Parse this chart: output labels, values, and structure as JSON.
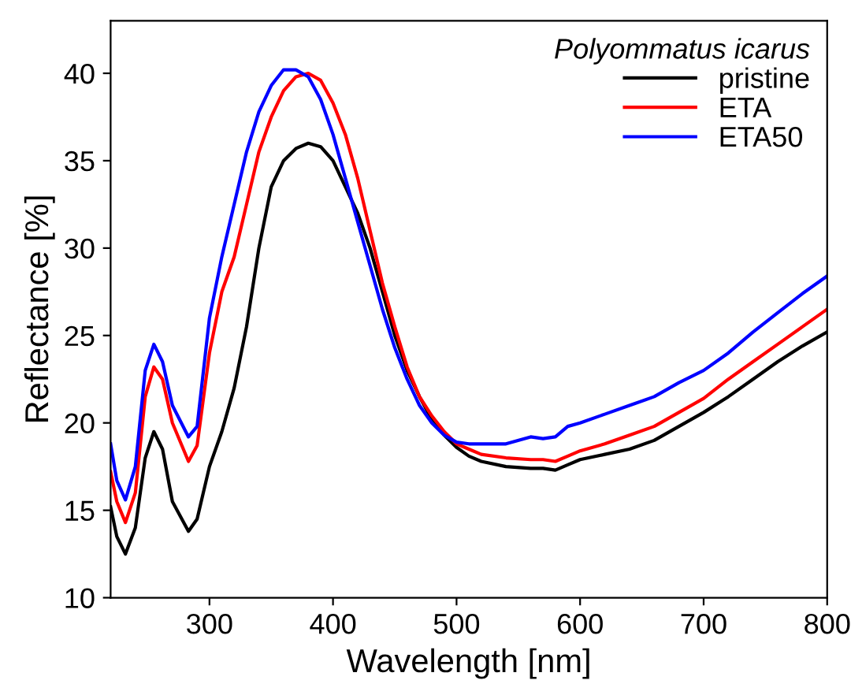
{
  "chart_data": {
    "type": "line",
    "xlabel": "Wavelength [nm]",
    "ylabel": "Reflectance [%]",
    "legend_title": "Polyommatus icarus",
    "legend": "top right",
    "grid": false,
    "marker": "none",
    "line_style": "solid",
    "xlim": [
      220,
      800
    ],
    "ylim": [
      10,
      43
    ],
    "xticks": [
      300,
      400,
      500,
      600,
      700,
      800
    ],
    "yticks": [
      10,
      15,
      20,
      25,
      30,
      35,
      40
    ],
    "x": [
      220,
      225,
      232,
      240,
      248,
      255,
      262,
      270,
      283,
      290,
      300,
      310,
      320,
      330,
      340,
      350,
      360,
      370,
      380,
      390,
      400,
      410,
      420,
      430,
      440,
      450,
      460,
      470,
      480,
      490,
      500,
      510,
      520,
      540,
      560,
      570,
      580,
      590,
      600,
      620,
      640,
      660,
      680,
      700,
      720,
      740,
      760,
      780,
      800
    ],
    "series": [
      {
        "name": "pristine",
        "color": "#000000",
        "values": [
          15.2,
          13.5,
          12.5,
          14,
          18,
          19.5,
          18.5,
          15.5,
          13.8,
          14.5,
          17.5,
          19.5,
          22,
          25.5,
          30,
          33.5,
          35,
          35.7,
          36,
          35.8,
          35,
          33.5,
          32,
          30,
          27.5,
          25,
          23,
          21.5,
          20.2,
          19.3,
          18.6,
          18.1,
          17.8,
          17.5,
          17.4,
          17.4,
          17.3,
          17.6,
          17.9,
          18.2,
          18.5,
          19,
          19.8,
          20.6,
          21.5,
          22.5,
          23.5,
          24.4,
          25.2
        ]
      },
      {
        "name": "ETA",
        "color": "#ff0000",
        "values": [
          17.2,
          15.5,
          14.3,
          16,
          21.5,
          23.2,
          22.5,
          20,
          17.8,
          18.7,
          24,
          27.5,
          29.5,
          32.5,
          35.5,
          37.5,
          39,
          39.8,
          40,
          39.6,
          38.3,
          36.5,
          34,
          31,
          28,
          25.5,
          23.2,
          21.5,
          20.4,
          19.5,
          18.8,
          18.5,
          18.2,
          18,
          17.9,
          17.9,
          17.8,
          18.1,
          18.4,
          18.8,
          19.3,
          19.8,
          20.6,
          21.4,
          22.5,
          23.5,
          24.5,
          25.5,
          26.5
        ]
      },
      {
        "name": "ETA50",
        "color": "#0000ff",
        "values": [
          18.8,
          16.7,
          15.6,
          17.5,
          23,
          24.5,
          23.5,
          21,
          19.2,
          19.8,
          26,
          29.5,
          32.5,
          35.5,
          37.8,
          39.3,
          40.2,
          40.2,
          39.8,
          38.5,
          36.5,
          34,
          31.5,
          29,
          26.5,
          24.3,
          22.5,
          21,
          20,
          19.3,
          18.9,
          18.8,
          18.8,
          18.8,
          19.2,
          19.1,
          19.2,
          19.8,
          20,
          20.5,
          21,
          21.5,
          22.3,
          23,
          24,
          25.2,
          26.3,
          27.4,
          28.4
        ]
      }
    ]
  }
}
